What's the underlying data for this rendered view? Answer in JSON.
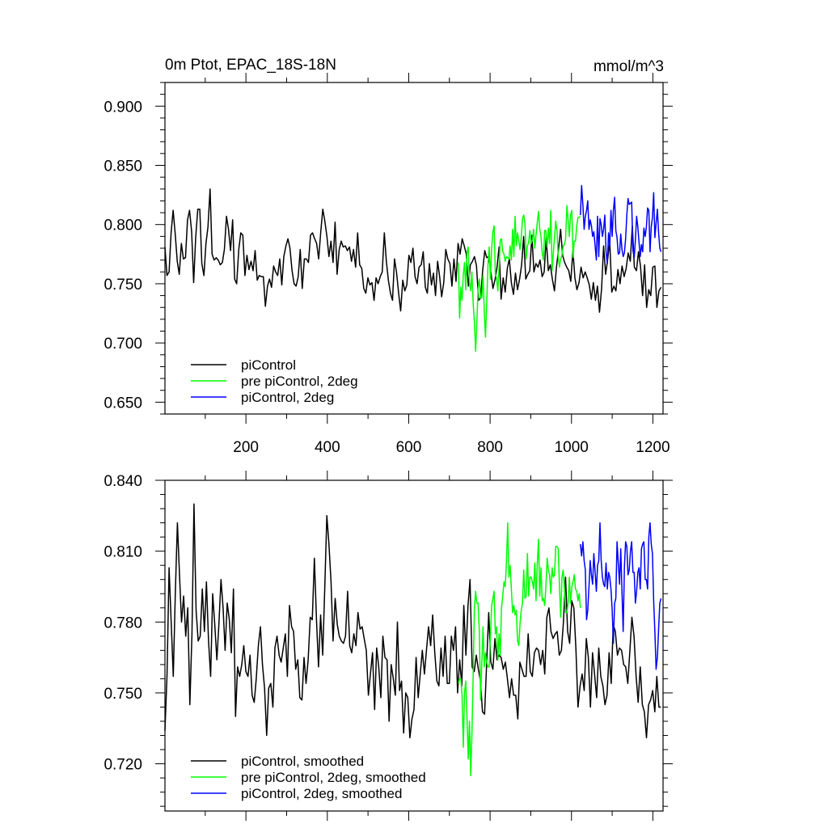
{
  "chart_data": [
    {
      "type": "line",
      "title_left": "0m Ptot, EPAC_18S-18N",
      "title_right": "mmol/m^3",
      "xlim": [
        1,
        1225
      ],
      "ylim": [
        0.64,
        0.92
      ],
      "xticks": [
        200,
        400,
        600,
        800,
        1000,
        1200
      ],
      "xtick_labels": [
        "200",
        "400",
        "600",
        "800",
        "1000",
        "1200"
      ],
      "yticks": [
        0.65,
        0.7,
        0.75,
        0.8,
        0.85,
        0.9
      ],
      "ytick_labels": [
        "0.650",
        "0.700",
        "0.750",
        "0.800",
        "0.850",
        "0.900"
      ],
      "grid": false,
      "legend_position": "bottom-left",
      "series": [
        {
          "name": "piControl",
          "color": "#000000",
          "x_start": 1,
          "x_end": 1220,
          "step": 5,
          "values": [
            0.781,
            0.757,
            0.76,
            0.793,
            0.812,
            0.792,
            0.769,
            0.758,
            0.784,
            0.771,
            0.772,
            0.804,
            0.812,
            0.794,
            0.751,
            0.789,
            0.813,
            0.813,
            0.767,
            0.757,
            0.784,
            0.798,
            0.83,
            0.775,
            0.77,
            0.772,
            0.77,
            0.766,
            0.768,
            0.779,
            0.807,
            0.796,
            0.778,
            0.804,
            0.754,
            0.75,
            0.779,
            0.793,
            0.791,
            0.757,
            0.774,
            0.762,
            0.769,
            0.761,
            0.778,
            0.753,
            0.757,
            0.756,
            0.756,
            0.731,
            0.748,
            0.754,
            0.747,
            0.765,
            0.76,
            0.757,
            0.771,
            0.749,
            0.773,
            0.782,
            0.788,
            0.78,
            0.761,
            0.75,
            0.748,
            0.756,
            0.779,
            0.746,
            0.771,
            0.771,
            0.768,
            0.791,
            0.793,
            0.788,
            0.784,
            0.771,
            0.794,
            0.813,
            0.803,
            0.79,
            0.773,
            0.786,
            0.768,
            0.802,
            0.758,
            0.779,
            0.786,
            0.781,
            0.782,
            0.778,
            0.781,
            0.769,
            0.779,
            0.764,
            0.793,
            0.766,
            0.763,
            0.746,
            0.742,
            0.755,
            0.749,
            0.751,
            0.736,
            0.755,
            0.75,
            0.756,
            0.76,
            0.793,
            0.769,
            0.753,
            0.742,
            0.736,
            0.771,
            0.759,
            0.742,
            0.727,
            0.753,
            0.744,
            0.749,
            0.774,
            0.768,
            0.78,
            0.756,
            0.75,
            0.764,
            0.766,
            0.777,
            0.747,
            0.742,
            0.767,
            0.749,
            0.759,
            0.74,
            0.769,
            0.756,
            0.739,
            0.751,
            0.779,
            0.771,
            0.767,
            0.748,
            0.771,
            0.752,
            0.784,
            0.775,
            0.788,
            0.782,
            0.775,
            0.748,
            0.766,
            0.769,
            0.773,
            0.765,
            0.736,
            0.738,
            0.761,
            0.778,
            0.772,
            0.773,
            0.76,
            0.746,
            0.753,
            0.764,
            0.781,
            0.737,
            0.755,
            0.743,
            0.763,
            0.771,
            0.751,
            0.741,
            0.759,
            0.745,
            0.754,
            0.766,
            0.79,
            0.754,
            0.758,
            0.761,
            0.791,
            0.76,
            0.767,
            0.764,
            0.77,
            0.756,
            0.76,
            0.789,
            0.761,
            0.766,
            0.754,
            0.744,
            0.764,
            0.779,
            0.796,
            0.774,
            0.768,
            0.764,
            0.761,
            0.752,
            0.778,
            0.755,
            0.745,
            0.751,
            0.764,
            0.755,
            0.76,
            0.755,
            0.749,
            0.737,
            0.751,
            0.736,
            0.748,
            0.726,
            0.746,
            0.782,
            0.758,
            0.771,
            0.786,
            0.743,
            0.748,
            0.744,
            0.762,
            0.75,
            0.765,
            0.756,
            0.763,
            0.776,
            0.769,
            0.799,
            0.764,
            0.761,
            0.777,
            0.765,
            0.74,
            0.766,
            0.73,
            0.745,
            0.74,
            0.764,
            0.765,
            0.73,
            0.744,
            0.747
          ]
        },
        {
          "name": "pre piControl, 2deg",
          "color": "#00ff00",
          "x_start": 722,
          "x_end": 1022,
          "step": 3,
          "values": [
            0.768,
            0.721,
            0.747,
            0.736,
            0.758,
            0.768,
            0.745,
            0.776,
            0.781,
            0.751,
            0.744,
            0.76,
            0.733,
            0.718,
            0.693,
            0.717,
            0.746,
            0.754,
            0.738,
            0.738,
            0.757,
            0.727,
            0.705,
            0.733,
            0.766,
            0.781,
            0.754,
            0.78,
            0.794,
            0.799,
            0.758,
            0.755,
            0.744,
            0.764,
            0.787,
            0.788,
            0.777,
            0.775,
            0.769,
            0.773,
            0.772,
            0.771,
            0.782,
            0.77,
            0.796,
            0.773,
            0.807,
            0.782,
            0.793,
            0.786,
            0.779,
            0.789,
            0.805,
            0.808,
            0.801,
            0.771,
            0.782,
            0.785,
            0.795,
            0.784,
            0.787,
            0.796,
            0.78,
            0.791,
            0.802,
            0.811,
            0.796,
            0.79,
            0.776,
            0.77,
            0.795,
            0.795,
            0.781,
            0.797,
            0.784,
            0.812,
            0.761,
            0.776,
            0.789,
            0.803,
            0.794,
            0.772,
            0.764,
            0.771,
            0.774,
            0.782,
            0.783,
            0.788,
            0.816,
            0.804,
            0.79,
            0.808,
            0.812,
            0.772,
            0.786,
            0.786,
            0.799,
            0.806,
            0.806,
            0.807
          ]
        },
        {
          "name": "piControl, 2deg",
          "color": "#0000ff",
          "x_start": 1022,
          "x_end": 1220,
          "step": 3,
          "values": [
            0.808,
            0.833,
            0.816,
            0.796,
            0.807,
            0.812,
            0.82,
            0.796,
            0.804,
            0.799,
            0.79,
            0.794,
            0.782,
            0.77,
            0.807,
            0.773,
            0.805,
            0.8,
            0.79,
            0.796,
            0.808,
            0.777,
            0.767,
            0.793,
            0.782,
            0.812,
            0.79,
            0.812,
            0.823,
            0.795,
            0.789,
            0.775,
            0.776,
            0.792,
            0.779,
            0.773,
            0.776,
            0.788,
            0.808,
            0.822,
            0.817,
            0.818,
            0.819,
            0.778,
            0.772,
            0.787,
            0.807,
            0.798,
            0.785,
            0.773,
            0.783,
            0.777,
            0.797,
            0.79,
            0.798,
            0.814,
            0.812,
            0.777,
            0.798,
            0.806,
            0.827,
            0.789,
            0.801,
            0.813,
            0.793,
            0.78,
            0.777
          ]
        }
      ]
    },
    {
      "type": "line",
      "xlim": [
        1,
        1225
      ],
      "ylim": [
        0.7,
        0.84
      ],
      "yticks": [
        0.72,
        0.75,
        0.78,
        0.81,
        0.84
      ],
      "ytick_labels": [
        "0.720",
        "0.750",
        "0.780",
        "0.810",
        "0.840"
      ],
      "grid": false,
      "legend_position": "bottom-left",
      "series": [
        {
          "name": "piControl, smoothed",
          "color": "#000000",
          "x_start": 1,
          "x_end": 1220,
          "step": 5,
          "values": [
            0.734,
            0.758,
            0.803,
            0.78,
            0.757,
            0.792,
            0.822,
            0.8,
            0.78,
            0.791,
            0.774,
            0.786,
            0.745,
            0.775,
            0.83,
            0.785,
            0.772,
            0.774,
            0.794,
            0.776,
            0.797,
            0.772,
            0.757,
            0.792,
            0.779,
            0.764,
            0.779,
            0.798,
            0.786,
            0.768,
            0.788,
            0.781,
            0.767,
            0.794,
            0.74,
            0.761,
            0.757,
            0.762,
            0.77,
            0.759,
            0.757,
            0.766,
            0.749,
            0.746,
            0.756,
            0.77,
            0.778,
            0.762,
            0.752,
            0.732,
            0.752,
            0.754,
            0.744,
            0.769,
            0.774,
            0.766,
            0.763,
            0.769,
            0.775,
            0.757,
            0.787,
            0.778,
            0.776,
            0.76,
            0.764,
            0.748,
            0.747,
            0.765,
            0.754,
            0.764,
            0.782,
            0.781,
            0.807,
            0.781,
            0.761,
            0.783,
            0.766,
            0.794,
            0.825,
            0.813,
            0.797,
            0.772,
            0.79,
            0.779,
            0.774,
            0.772,
            0.771,
            0.774,
            0.793,
            0.77,
            0.767,
            0.775,
            0.77,
            0.784,
            0.777,
            0.778,
            0.773,
            0.768,
            0.749,
            0.758,
            0.767,
            0.743,
            0.769,
            0.761,
            0.748,
            0.774,
            0.765,
            0.764,
            0.738,
            0.762,
            0.756,
            0.749,
            0.78,
            0.751,
            0.755,
            0.733,
            0.75,
            0.748,
            0.731,
            0.739,
            0.743,
            0.765,
            0.748,
            0.758,
            0.768,
            0.758,
            0.768,
            0.778,
            0.77,
            0.783,
            0.767,
            0.755,
            0.753,
            0.769,
            0.757,
            0.774,
            0.754,
            0.754,
            0.774,
            0.768,
            0.778,
            0.75,
            0.764,
            0.753,
            0.787,
            0.766,
            0.787,
            0.798,
            0.761,
            0.759,
            0.766,
            0.76,
            0.755,
            0.742,
            0.741,
            0.763,
            0.784,
            0.763,
            0.76,
            0.773,
            0.764,
            0.766,
            0.765,
            0.76,
            0.763,
            0.756,
            0.748,
            0.756,
            0.749,
            0.749,
            0.739,
            0.763,
            0.76,
            0.757,
            0.757,
            0.775,
            0.759,
            0.757,
            0.767,
            0.769,
            0.768,
            0.762,
            0.768,
            0.758,
            0.782,
            0.786,
            0.776,
            0.773,
            0.775,
            0.776,
            0.766,
            0.768,
            0.78,
            0.799,
            0.776,
            0.771,
            0.789,
            0.786,
            0.769,
            0.744,
            0.753,
            0.758,
            0.751,
            0.773,
            0.765,
            0.744,
            0.767,
            0.758,
            0.748,
            0.769,
            0.757,
            0.753,
            0.745,
            0.749,
            0.767,
            0.754,
            0.779,
            0.776,
            0.766,
            0.769,
            0.768,
            0.762,
            0.761,
            0.754,
            0.768,
            0.782,
            0.774,
            0.757,
            0.746,
            0.761,
            0.745,
            0.742,
            0.731,
            0.745,
            0.747,
            0.751,
            0.742,
            0.757,
            0.744,
            0.744
          ]
        },
        {
          "name": "pre piControl, 2deg, smoothed",
          "color": "#00ff00",
          "x_start": 722,
          "x_end": 1022,
          "step": 3,
          "values": [
            0.754,
            0.756,
            0.756,
            0.749,
            0.727,
            0.75,
            0.755,
            0.74,
            0.722,
            0.738,
            0.715,
            0.732,
            0.758,
            0.786,
            0.793,
            0.788,
            0.788,
            0.776,
            0.747,
            0.762,
            0.778,
            0.761,
            0.767,
            0.763,
            0.761,
            0.761,
            0.774,
            0.787,
            0.79,
            0.793,
            0.775,
            0.778,
            0.764,
            0.775,
            0.766,
            0.786,
            0.791,
            0.797,
            0.795,
            0.805,
            0.822,
            0.799,
            0.804,
            0.794,
            0.784,
            0.787,
            0.783,
            0.785,
            0.772,
            0.77,
            0.779,
            0.785,
            0.788,
            0.802,
            0.79,
            0.791,
            0.809,
            0.791,
            0.799,
            0.799,
            0.797,
            0.794,
            0.805,
            0.789,
            0.805,
            0.815,
            0.791,
            0.803,
            0.789,
            0.79,
            0.787,
            0.795,
            0.807,
            0.802,
            0.8,
            0.792,
            0.803,
            0.799,
            0.8,
            0.812,
            0.812,
            0.811,
            0.795,
            0.782,
            0.799,
            0.802,
            0.795,
            0.784,
            0.784,
            0.788,
            0.799,
            0.788,
            0.795,
            0.797,
            0.8,
            0.794,
            0.793,
            0.789,
            0.792,
            0.786
          ]
        },
        {
          "name": "piControl, 2deg, smoothed",
          "color": "#0000ff",
          "x_start": 1022,
          "x_end": 1220,
          "step": 3,
          "values": [
            0.813,
            0.808,
            0.814,
            0.806,
            0.802,
            0.781,
            0.785,
            0.795,
            0.806,
            0.8,
            0.796,
            0.809,
            0.801,
            0.793,
            0.804,
            0.806,
            0.822,
            0.806,
            0.799,
            0.796,
            0.795,
            0.805,
            0.794,
            0.801,
            0.799,
            0.794,
            0.785,
            0.771,
            0.788,
            0.79,
            0.814,
            0.805,
            0.796,
            0.811,
            0.793,
            0.776,
            0.803,
            0.814,
            0.812,
            0.8,
            0.802,
            0.81,
            0.814,
            0.801,
            0.801,
            0.788,
            0.793,
            0.801,
            0.803,
            0.794,
            0.811,
            0.813,
            0.814,
            0.798,
            0.798,
            0.794,
            0.816,
            0.822,
            0.813,
            0.809,
            0.789,
            0.776,
            0.76,
            0.765,
            0.777,
            0.788,
            0.79
          ]
        }
      ]
    }
  ]
}
